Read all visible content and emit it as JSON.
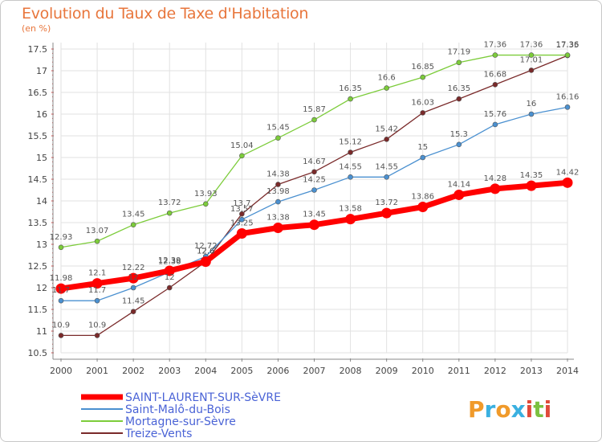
{
  "chart_data": {
    "type": "line",
    "title": "Evolution du Taux de Taxe d'Habitation",
    "subtitle": "(en %)",
    "xlabel": "",
    "ylabel": "",
    "x": [
      "2000",
      "2001",
      "2002",
      "2003",
      "2004",
      "2005",
      "2006",
      "2007",
      "2008",
      "2009",
      "2010",
      "2011",
      "2012",
      "2013",
      "2014"
    ],
    "ylim": [
      10.5,
      17.5
    ],
    "yticks": [
      "10.5",
      "11",
      "11.5",
      "12",
      "12.5",
      "13",
      "13.5",
      "14",
      "14.5",
      "15",
      "15.5",
      "16",
      "16.5",
      "17",
      "17.5"
    ],
    "grid": true,
    "series": [
      {
        "name": "SAINT-LAURENT-SUR-SèVRE",
        "color": "#ff0000",
        "values": [
          11.98,
          12.1,
          12.22,
          12.39,
          12.6,
          13.25,
          13.38,
          13.45,
          13.58,
          13.72,
          13.86,
          14.14,
          14.28,
          14.35,
          14.42
        ],
        "labels": [
          "11.98",
          "12.1",
          "12.22",
          "12.39",
          "12.6",
          "13.25",
          "13.38",
          "13.45",
          "13.58",
          "13.72",
          "13.86",
          "14.14",
          "14.28",
          "14.35",
          "14.42"
        ]
      },
      {
        "name": "Saint-Malô-du-Bois",
        "color": "#4a90d0",
        "values": [
          11.7,
          11.7,
          12.0,
          12.36,
          12.72,
          13.57,
          13.98,
          14.25,
          14.55,
          14.55,
          15.0,
          15.3,
          15.76,
          16.0,
          16.16
        ],
        "labels": [
          "11.7",
          "11.7",
          "12",
          "12.36",
          "12.72",
          "13.57",
          "13.98",
          "14.25",
          "14.55",
          "14.55",
          "15",
          "15.3",
          "15.76",
          "16",
          "16.16"
        ]
      },
      {
        "name": "Mortagne-sur-Sèvre",
        "color": "#7ccc3a",
        "values": [
          12.93,
          13.07,
          13.45,
          13.72,
          13.93,
          15.04,
          15.45,
          15.87,
          16.35,
          16.6,
          16.85,
          17.19,
          17.36,
          17.36,
          17.36
        ],
        "labels": [
          "12.93",
          "13.07",
          "13.45",
          "13.72",
          "13.93",
          "15.04",
          "15.45",
          "15.87",
          "16.35",
          "16.6",
          "16.85",
          "17.19",
          "17.36",
          "17.36",
          "17.36"
        ]
      },
      {
        "name": "Treize-Vents",
        "color": "#7a2a2a",
        "values": [
          10.9,
          10.9,
          11.45,
          12.0,
          12.6,
          13.7,
          14.38,
          14.67,
          15.12,
          15.42,
          16.03,
          16.35,
          16.68,
          17.01,
          17.35
        ],
        "labels": [
          "10.9",
          "10.9",
          "11.45",
          "12",
          "12.6",
          "13.7",
          "14.38",
          "14.67",
          "15.12",
          "15.42",
          "16.03",
          "16.35",
          "16.68",
          "17.01",
          "17.35"
        ]
      }
    ]
  },
  "logo": {
    "text": "Proxiti",
    "letters": [
      "P",
      "r",
      "o",
      "x",
      "i",
      "t",
      "i"
    ],
    "colors": [
      "#f09a2a",
      "#3ab0e0",
      "#f09a2a",
      "#3ab0e0",
      "#e04a3a",
      "#7cc040",
      "#e04a3a"
    ]
  }
}
